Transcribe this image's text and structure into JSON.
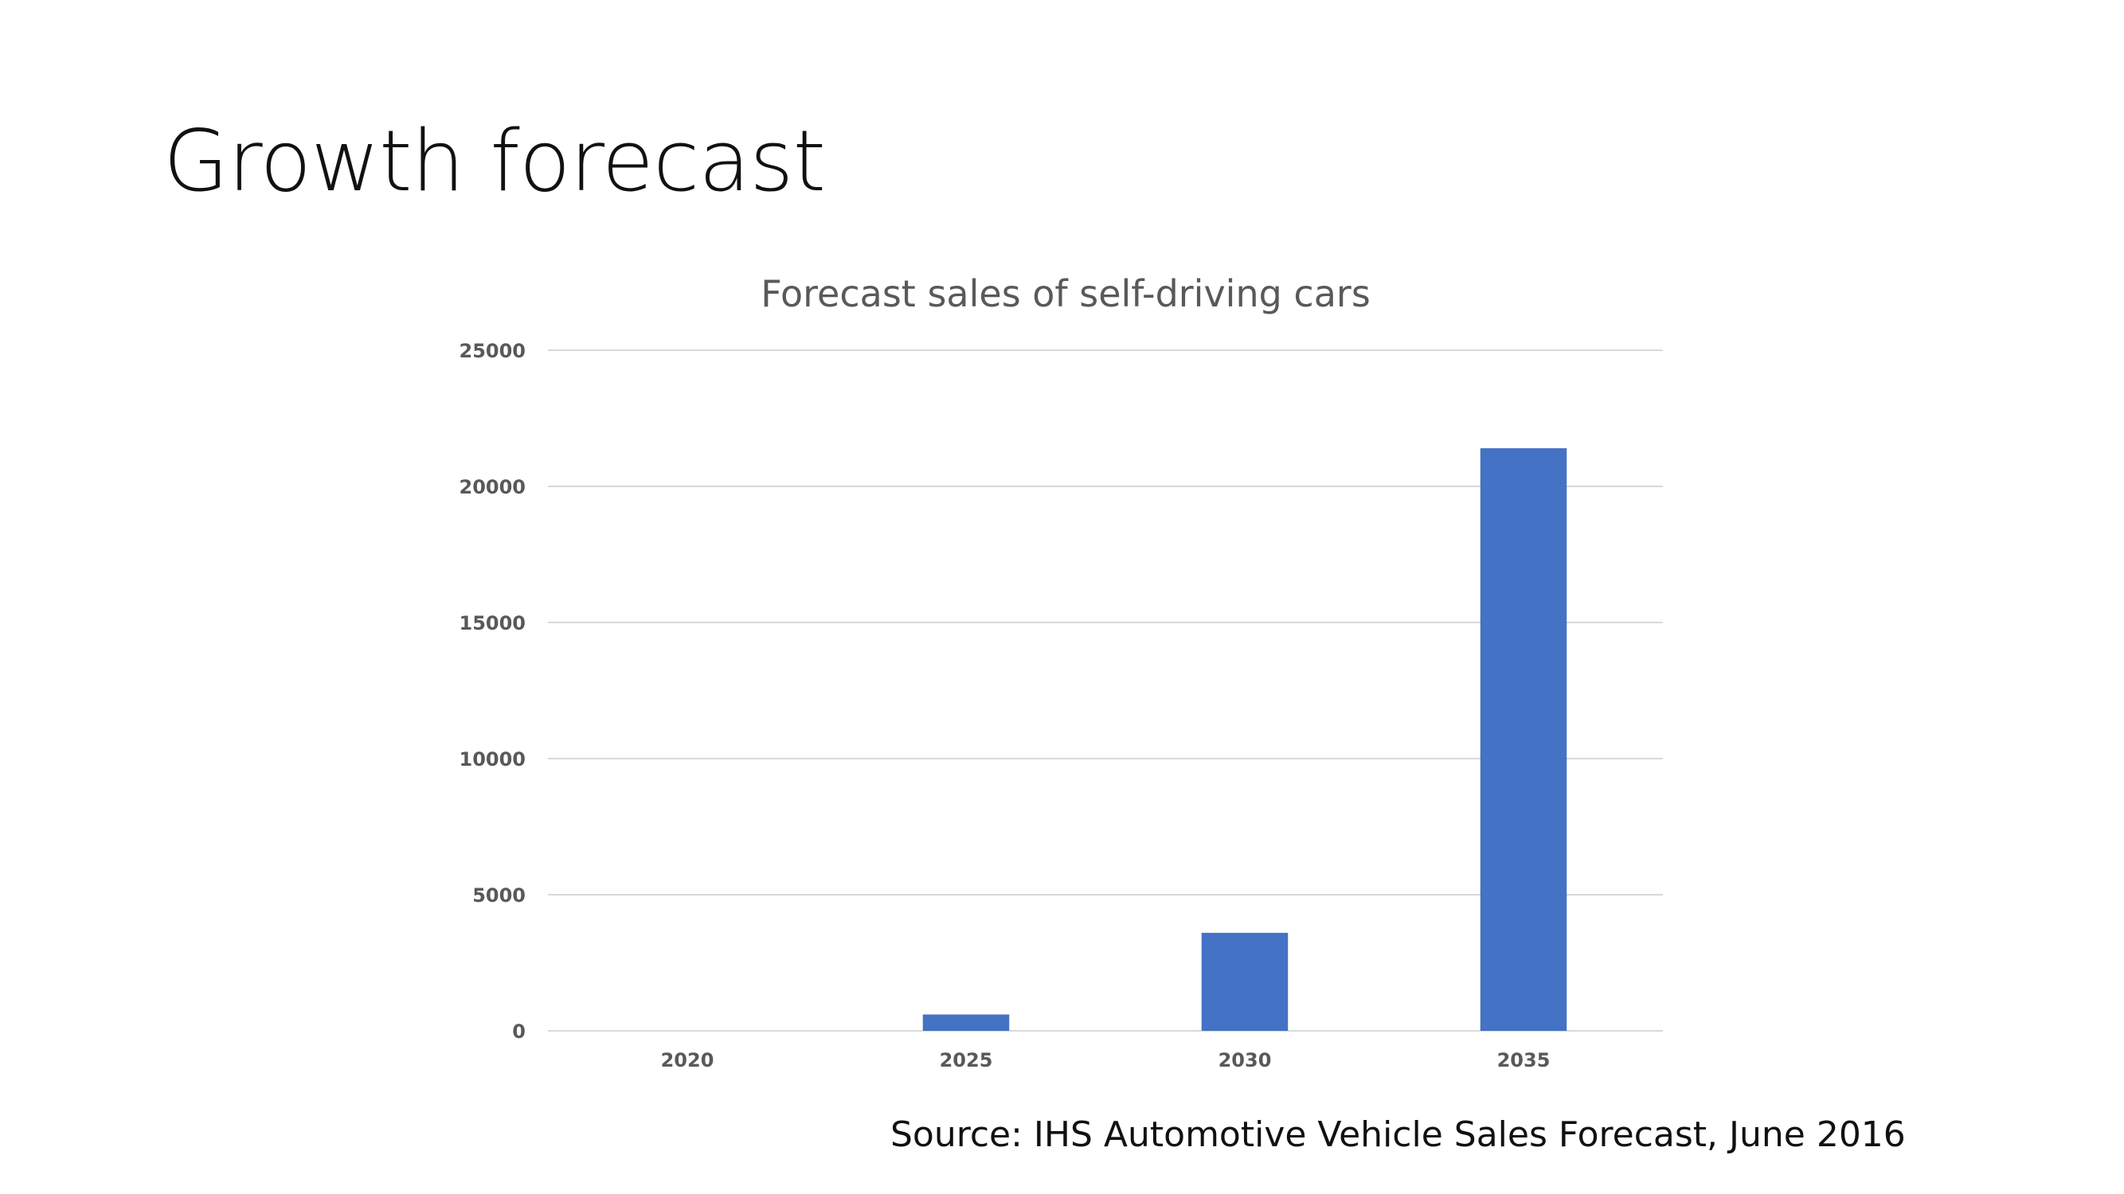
{
  "slide": {
    "title": "Growth forecast",
    "source": "Source:  IHS Automotive Vehicle Sales Forecast, June 2016"
  },
  "chart_data": {
    "type": "bar",
    "title": "Forecast sales of self-driving cars",
    "xlabel": "",
    "ylabel": "",
    "categories": [
      "2020",
      "2025",
      "2030",
      "2035"
    ],
    "values": [
      0,
      600,
      3600,
      21400
    ],
    "ylim": [
      0,
      25000
    ],
    "yticks": [
      0,
      5000,
      10000,
      15000,
      20000,
      25000
    ],
    "grid": true,
    "legend": "none",
    "bar_color": "#4472C4",
    "grid_color": "#d9d9d9",
    "tick_color": "#595959"
  }
}
